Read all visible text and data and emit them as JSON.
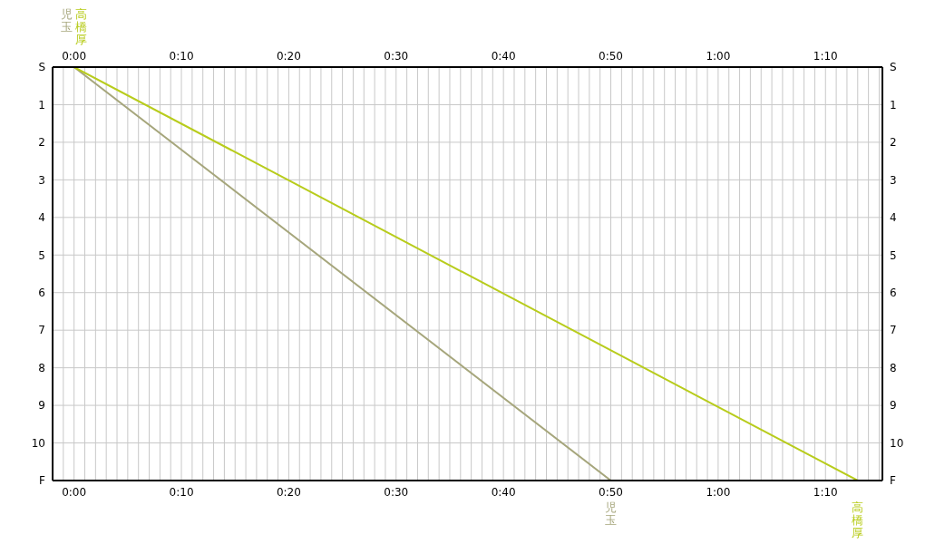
{
  "chart_data": {
    "type": "line",
    "series": [
      {
        "name": "児玉",
        "color": "#a6a67c",
        "x": [
          0,
          50
        ],
        "values": [
          0,
          11
        ]
      },
      {
        "name": "高橋厚",
        "color": "#b8cc1c",
        "x": [
          0,
          73
        ],
        "values": [
          0,
          11
        ]
      }
    ],
    "xlim": [
      -2,
      75.3
    ],
    "xticks": [
      {
        "value": -2,
        "label": null
      },
      {
        "value": -1,
        "label": null
      },
      {
        "value": 0,
        "label": "0:00"
      },
      {
        "value": 1,
        "label": null
      },
      {
        "value": 2,
        "label": null
      },
      {
        "value": 3,
        "label": null
      },
      {
        "value": 4,
        "label": null
      },
      {
        "value": 5,
        "label": null
      },
      {
        "value": 6,
        "label": null
      },
      {
        "value": 7,
        "label": null
      },
      {
        "value": 8,
        "label": null
      },
      {
        "value": 9,
        "label": null
      },
      {
        "value": 10,
        "label": "0:10"
      },
      {
        "value": 11,
        "label": null
      },
      {
        "value": 12,
        "label": null
      },
      {
        "value": 13,
        "label": null
      },
      {
        "value": 14,
        "label": null
      },
      {
        "value": 15,
        "label": null
      },
      {
        "value": 16,
        "label": null
      },
      {
        "value": 17,
        "label": null
      },
      {
        "value": 18,
        "label": null
      },
      {
        "value": 19,
        "label": null
      },
      {
        "value": 20,
        "label": "0:20"
      },
      {
        "value": 21,
        "label": null
      },
      {
        "value": 22,
        "label": null
      },
      {
        "value": 23,
        "label": null
      },
      {
        "value": 24,
        "label": null
      },
      {
        "value": 25,
        "label": null
      },
      {
        "value": 26,
        "label": null
      },
      {
        "value": 27,
        "label": null
      },
      {
        "value": 28,
        "label": null
      },
      {
        "value": 29,
        "label": null
      },
      {
        "value": 30,
        "label": "0:30"
      },
      {
        "value": 31,
        "label": null
      },
      {
        "value": 32,
        "label": null
      },
      {
        "value": 33,
        "label": null
      },
      {
        "value": 34,
        "label": null
      },
      {
        "value": 35,
        "label": null
      },
      {
        "value": 36,
        "label": null
      },
      {
        "value": 37,
        "label": null
      },
      {
        "value": 38,
        "label": null
      },
      {
        "value": 39,
        "label": null
      },
      {
        "value": 40,
        "label": "0:40"
      },
      {
        "value": 41,
        "label": null
      },
      {
        "value": 42,
        "label": null
      },
      {
        "value": 43,
        "label": null
      },
      {
        "value": 44,
        "label": null
      },
      {
        "value": 45,
        "label": null
      },
      {
        "value": 46,
        "label": null
      },
      {
        "value": 47,
        "label": null
      },
      {
        "value": 48,
        "label": null
      },
      {
        "value": 49,
        "label": null
      },
      {
        "value": 50,
        "label": "0:50"
      },
      {
        "value": 51,
        "label": null
      },
      {
        "value": 52,
        "label": null
      },
      {
        "value": 53,
        "label": null
      },
      {
        "value": 54,
        "label": null
      },
      {
        "value": 55,
        "label": null
      },
      {
        "value": 56,
        "label": null
      },
      {
        "value": 57,
        "label": null
      },
      {
        "value": 58,
        "label": null
      },
      {
        "value": 59,
        "label": null
      },
      {
        "value": 60,
        "label": "1:00"
      },
      {
        "value": 61,
        "label": null
      },
      {
        "value": 62,
        "label": null
      },
      {
        "value": 63,
        "label": null
      },
      {
        "value": 64,
        "label": null
      },
      {
        "value": 65,
        "label": null
      },
      {
        "value": 66,
        "label": null
      },
      {
        "value": 67,
        "label": null
      },
      {
        "value": 68,
        "label": null
      },
      {
        "value": 69,
        "label": null
      },
      {
        "value": 70,
        "label": "1:10"
      },
      {
        "value": 71,
        "label": null
      },
      {
        "value": 72,
        "label": null
      },
      {
        "value": 73,
        "label": null
      },
      {
        "value": 74,
        "label": null
      },
      {
        "value": 75,
        "label": null
      }
    ],
    "x2lim": [
      -2,
      75.3
    ],
    "x2ticks": [
      {
        "value": -2,
        "label": null
      },
      {
        "value": -1,
        "label": null
      },
      {
        "value": 0,
        "label": "0:00"
      },
      {
        "value": 1,
        "label": null
      },
      {
        "value": 2,
        "label": null
      },
      {
        "value": 3,
        "label": null
      },
      {
        "value": 4,
        "label": null
      },
      {
        "value": 5,
        "label": null
      },
      {
        "value": 6,
        "label": null
      },
      {
        "value": 7,
        "label": null
      },
      {
        "value": 8,
        "label": null
      },
      {
        "value": 9,
        "label": null
      },
      {
        "value": 10,
        "label": "0:10"
      },
      {
        "value": 11,
        "label": null
      },
      {
        "value": 12,
        "label": null
      },
      {
        "value": 13,
        "label": null
      },
      {
        "value": 14,
        "label": null
      },
      {
        "value": 15,
        "label": null
      },
      {
        "value": 16,
        "label": null
      },
      {
        "value": 17,
        "label": null
      },
      {
        "value": 18,
        "label": null
      },
      {
        "value": 19,
        "label": null
      },
      {
        "value": 20,
        "label": "0:20"
      },
      {
        "value": 21,
        "label": null
      },
      {
        "value": 22,
        "label": null
      },
      {
        "value": 23,
        "label": null
      },
      {
        "value": 24,
        "label": null
      },
      {
        "value": 25,
        "label": null
      },
      {
        "value": 26,
        "label": null
      },
      {
        "value": 27,
        "label": null
      },
      {
        "value": 28,
        "label": null
      },
      {
        "value": 29,
        "label": null
      },
      {
        "value": 30,
        "label": "0:30"
      },
      {
        "value": 31,
        "label": null
      },
      {
        "value": 32,
        "label": null
      },
      {
        "value": 33,
        "label": null
      },
      {
        "value": 34,
        "label": null
      },
      {
        "value": 35,
        "label": null
      },
      {
        "value": 36,
        "label": null
      },
      {
        "value": 37,
        "label": null
      },
      {
        "value": 38,
        "label": null
      },
      {
        "value": 39,
        "label": null
      },
      {
        "value": 40,
        "label": "0:40"
      },
      {
        "value": 41,
        "label": null
      },
      {
        "value": 42,
        "label": null
      },
      {
        "value": 43,
        "label": null
      },
      {
        "value": 44,
        "label": null
      },
      {
        "value": 45,
        "label": null
      },
      {
        "value": 46,
        "label": null
      },
      {
        "value": 47,
        "label": null
      },
      {
        "value": 48,
        "label": null
      },
      {
        "value": 49,
        "label": null
      },
      {
        "value": 50,
        "label": "0:50"
      },
      {
        "value": 51,
        "label": null
      },
      {
        "value": 52,
        "label": null
      },
      {
        "value": 53,
        "label": null
      },
      {
        "value": 54,
        "label": null
      },
      {
        "value": 55,
        "label": null
      },
      {
        "value": 56,
        "label": null
      },
      {
        "value": 57,
        "label": null
      },
      {
        "value": 58,
        "label": null
      },
      {
        "value": 59,
        "label": null
      },
      {
        "value": 60,
        "label": "1:00"
      },
      {
        "value": 61,
        "label": null
      },
      {
        "value": 62,
        "label": null
      },
      {
        "value": 63,
        "label": null
      },
      {
        "value": 64,
        "label": null
      },
      {
        "value": 65,
        "label": null
      },
      {
        "value": 66,
        "label": null
      },
      {
        "value": 67,
        "label": null
      },
      {
        "value": 68,
        "label": null
      },
      {
        "value": 69,
        "label": null
      },
      {
        "value": 70,
        "label": "1:10"
      },
      {
        "value": 71,
        "label": null
      },
      {
        "value": 72,
        "label": null
      },
      {
        "value": 73,
        "label": null
      },
      {
        "value": 74,
        "label": null
      },
      {
        "value": 75,
        "label": null
      }
    ],
    "ylim": [
      11,
      0
    ],
    "yticks": [
      {
        "value": 0,
        "label": "S"
      },
      1,
      2,
      3,
      4,
      5,
      6,
      7,
      8,
      9,
      10,
      {
        "value": 11,
        "label": "F"
      }
    ],
    "y2lim": [
      11,
      0
    ],
    "y2ticks": [
      {
        "value": 0,
        "label": "S"
      },
      1,
      2,
      3,
      4,
      5,
      6,
      7,
      8,
      9,
      10,
      {
        "value": 11,
        "label": "F"
      }
    ],
    "grid": true,
    "marker": "none",
    "line_style": "solid"
  }
}
